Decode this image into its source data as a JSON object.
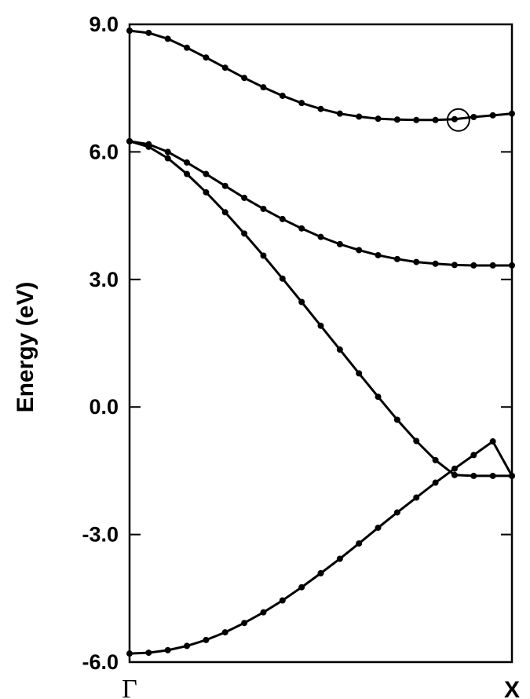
{
  "chart_data": {
    "type": "line",
    "title": "",
    "xlabel": "",
    "ylabel": "Energy (eV)",
    "xlim": [
      0,
      1
    ],
    "ylim": [
      -6.0,
      9.0
    ],
    "y_ticks": [
      {
        "value": -6.0,
        "label": "-6.0"
      },
      {
        "value": -3.0,
        "label": "-3.0"
      },
      {
        "value": 0.0,
        "label": "0.0"
      },
      {
        "value": 3.0,
        "label": "3.0"
      },
      {
        "value": 6.0,
        "label": "6.0"
      },
      {
        "value": 9.0,
        "label": "9.0"
      }
    ],
    "x_ticks": [
      {
        "value": 0,
        "label": "Γ"
      },
      {
        "value": 1,
        "label": "X"
      }
    ],
    "grid": false,
    "legend": "none",
    "marker": "filled-circle",
    "color": "#000000",
    "x": [
      0,
      0.05,
      0.1,
      0.15,
      0.2,
      0.25,
      0.3,
      0.35,
      0.4,
      0.45,
      0.5,
      0.55,
      0.6,
      0.65,
      0.7,
      0.75,
      0.8,
      0.85,
      0.9,
      0.95,
      1.0
    ],
    "series": [
      {
        "values": [
          -5.8,
          -5.78,
          -5.72,
          -5.62,
          -5.48,
          -5.3,
          -5.08,
          -4.83,
          -4.55,
          -4.24,
          -3.91,
          -3.57,
          -3.21,
          -2.84,
          -2.48,
          -2.13,
          -1.78,
          -1.45,
          -1.13,
          -0.81,
          -1.62
        ]
      },
      {
        "values": [
          6.25,
          6.12,
          5.85,
          5.48,
          5.05,
          4.58,
          4.08,
          3.56,
          3.02,
          2.47,
          1.91,
          1.35,
          0.79,
          0.24,
          -0.3,
          -0.8,
          -1.25,
          -1.6,
          -1.62,
          -1.62,
          -1.62
        ]
      },
      {
        "values": [
          6.25,
          6.18,
          6.0,
          5.75,
          5.48,
          5.2,
          4.92,
          4.66,
          4.42,
          4.2,
          4.0,
          3.83,
          3.69,
          3.57,
          3.48,
          3.41,
          3.37,
          3.34,
          3.33,
          3.33,
          3.33
        ]
      },
      {
        "values": [
          8.85,
          8.8,
          8.66,
          8.45,
          8.22,
          7.98,
          7.74,
          7.52,
          7.32,
          7.15,
          7.01,
          6.9,
          6.83,
          6.78,
          6.76,
          6.75,
          6.75,
          6.77,
          6.82,
          6.86,
          6.9
        ]
      }
    ],
    "annotations": [
      {
        "type": "open-circle",
        "x": 0.86,
        "y": 6.75
      }
    ]
  }
}
